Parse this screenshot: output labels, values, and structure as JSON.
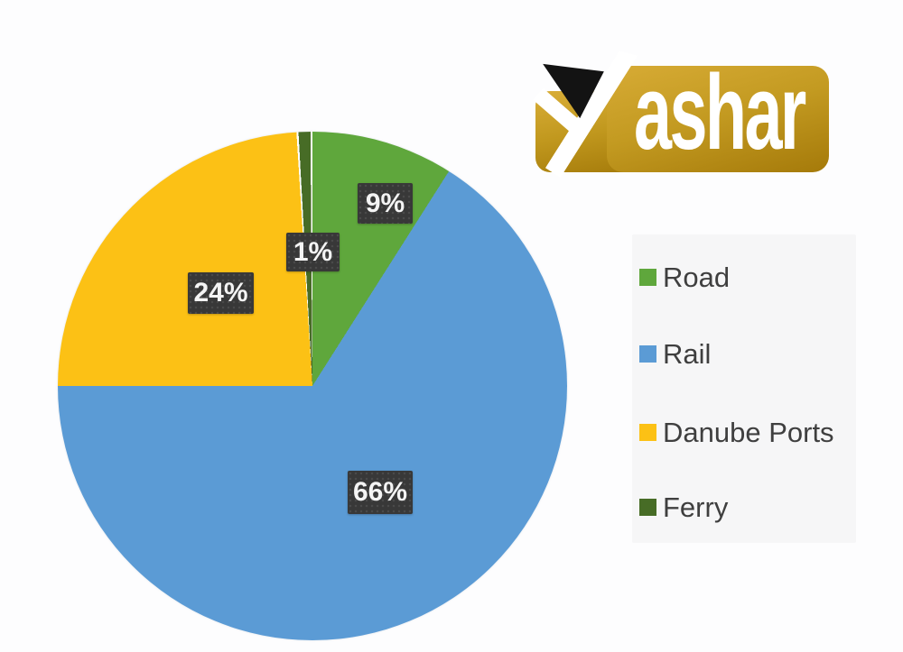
{
  "brand": {
    "name": "Yashar",
    "wordmark_initial": "Y",
    "wordmark_rest": "ashar",
    "plate_gold": "#c1981e",
    "triangle_black": "#131313"
  },
  "colors": {
    "page_background": "#fdfdfe",
    "label_box_background": "#383838",
    "label_text": "#f4f4f4",
    "legend_text": "#3f3f3f",
    "legend_panel_background": "#f6f6f7"
  },
  "chart_data": {
    "type": "pie",
    "categories": [
      "Road",
      "Rail",
      "Danube Ports",
      "Ferry"
    ],
    "values": [
      9,
      66,
      24,
      1
    ],
    "unit": "%",
    "data_labels": [
      "9%",
      "66%",
      "24%",
      "1%"
    ],
    "colors": [
      "#5fa73c",
      "#5b9bd5",
      "#fcc115",
      "#476c26"
    ],
    "legend_position": "right",
    "direction": "clockwise",
    "start_angle": "12-oclock",
    "seam_color": "#ffffff"
  }
}
